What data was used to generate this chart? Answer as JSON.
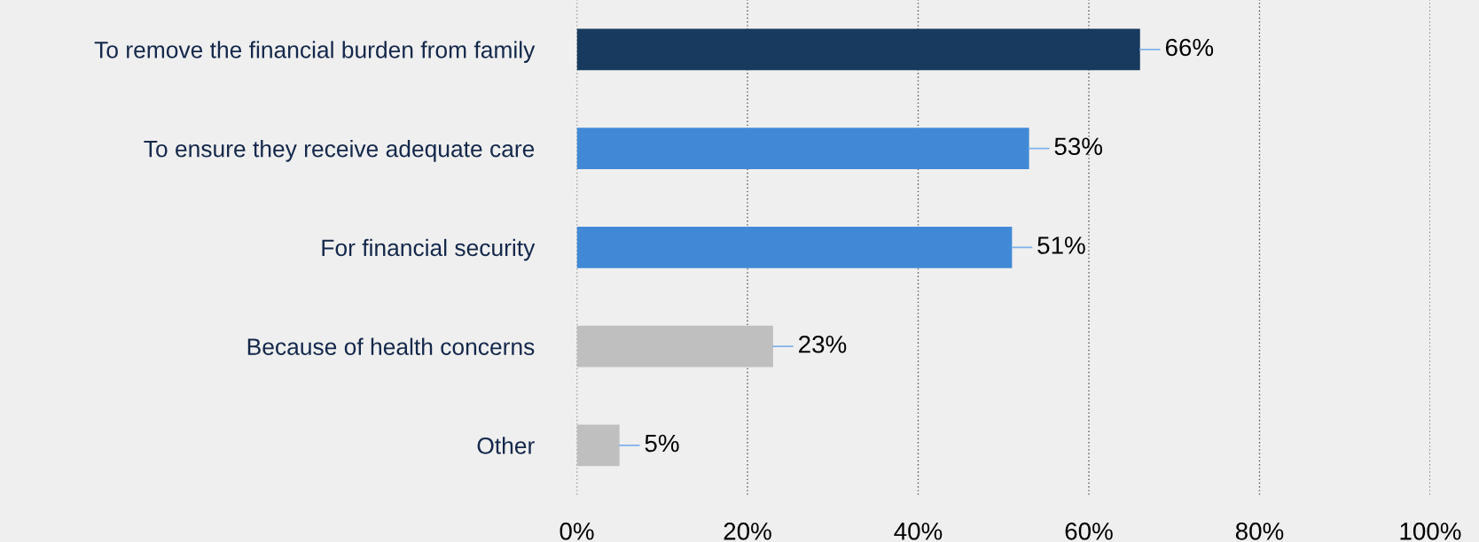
{
  "chart_data": {
    "type": "bar",
    "orientation": "horizontal",
    "categories": [
      "To remove the financial burden from family",
      "To ensure they receive adequate care",
      "For financial security",
      "Because of health concerns",
      "Other"
    ],
    "values": [
      66,
      53,
      51,
      23,
      5
    ],
    "colors": [
      "#173a5e",
      "#4189d6",
      "#4189d6",
      "#bfbfbf",
      "#bfbfbf"
    ],
    "value_labels": [
      "66%",
      "53%",
      "51%",
      "23%",
      "5%"
    ],
    "xlim": [
      0,
      100
    ],
    "xticks": [
      {
        "value": 0,
        "label": "0%"
      },
      {
        "value": 20,
        "label": "20%"
      },
      {
        "value": 40,
        "label": "40%"
      },
      {
        "value": 60,
        "label": "60%"
      },
      {
        "value": 80,
        "label": "80%"
      },
      {
        "value": 100,
        "label": "100%"
      }
    ],
    "grid": "x"
  }
}
